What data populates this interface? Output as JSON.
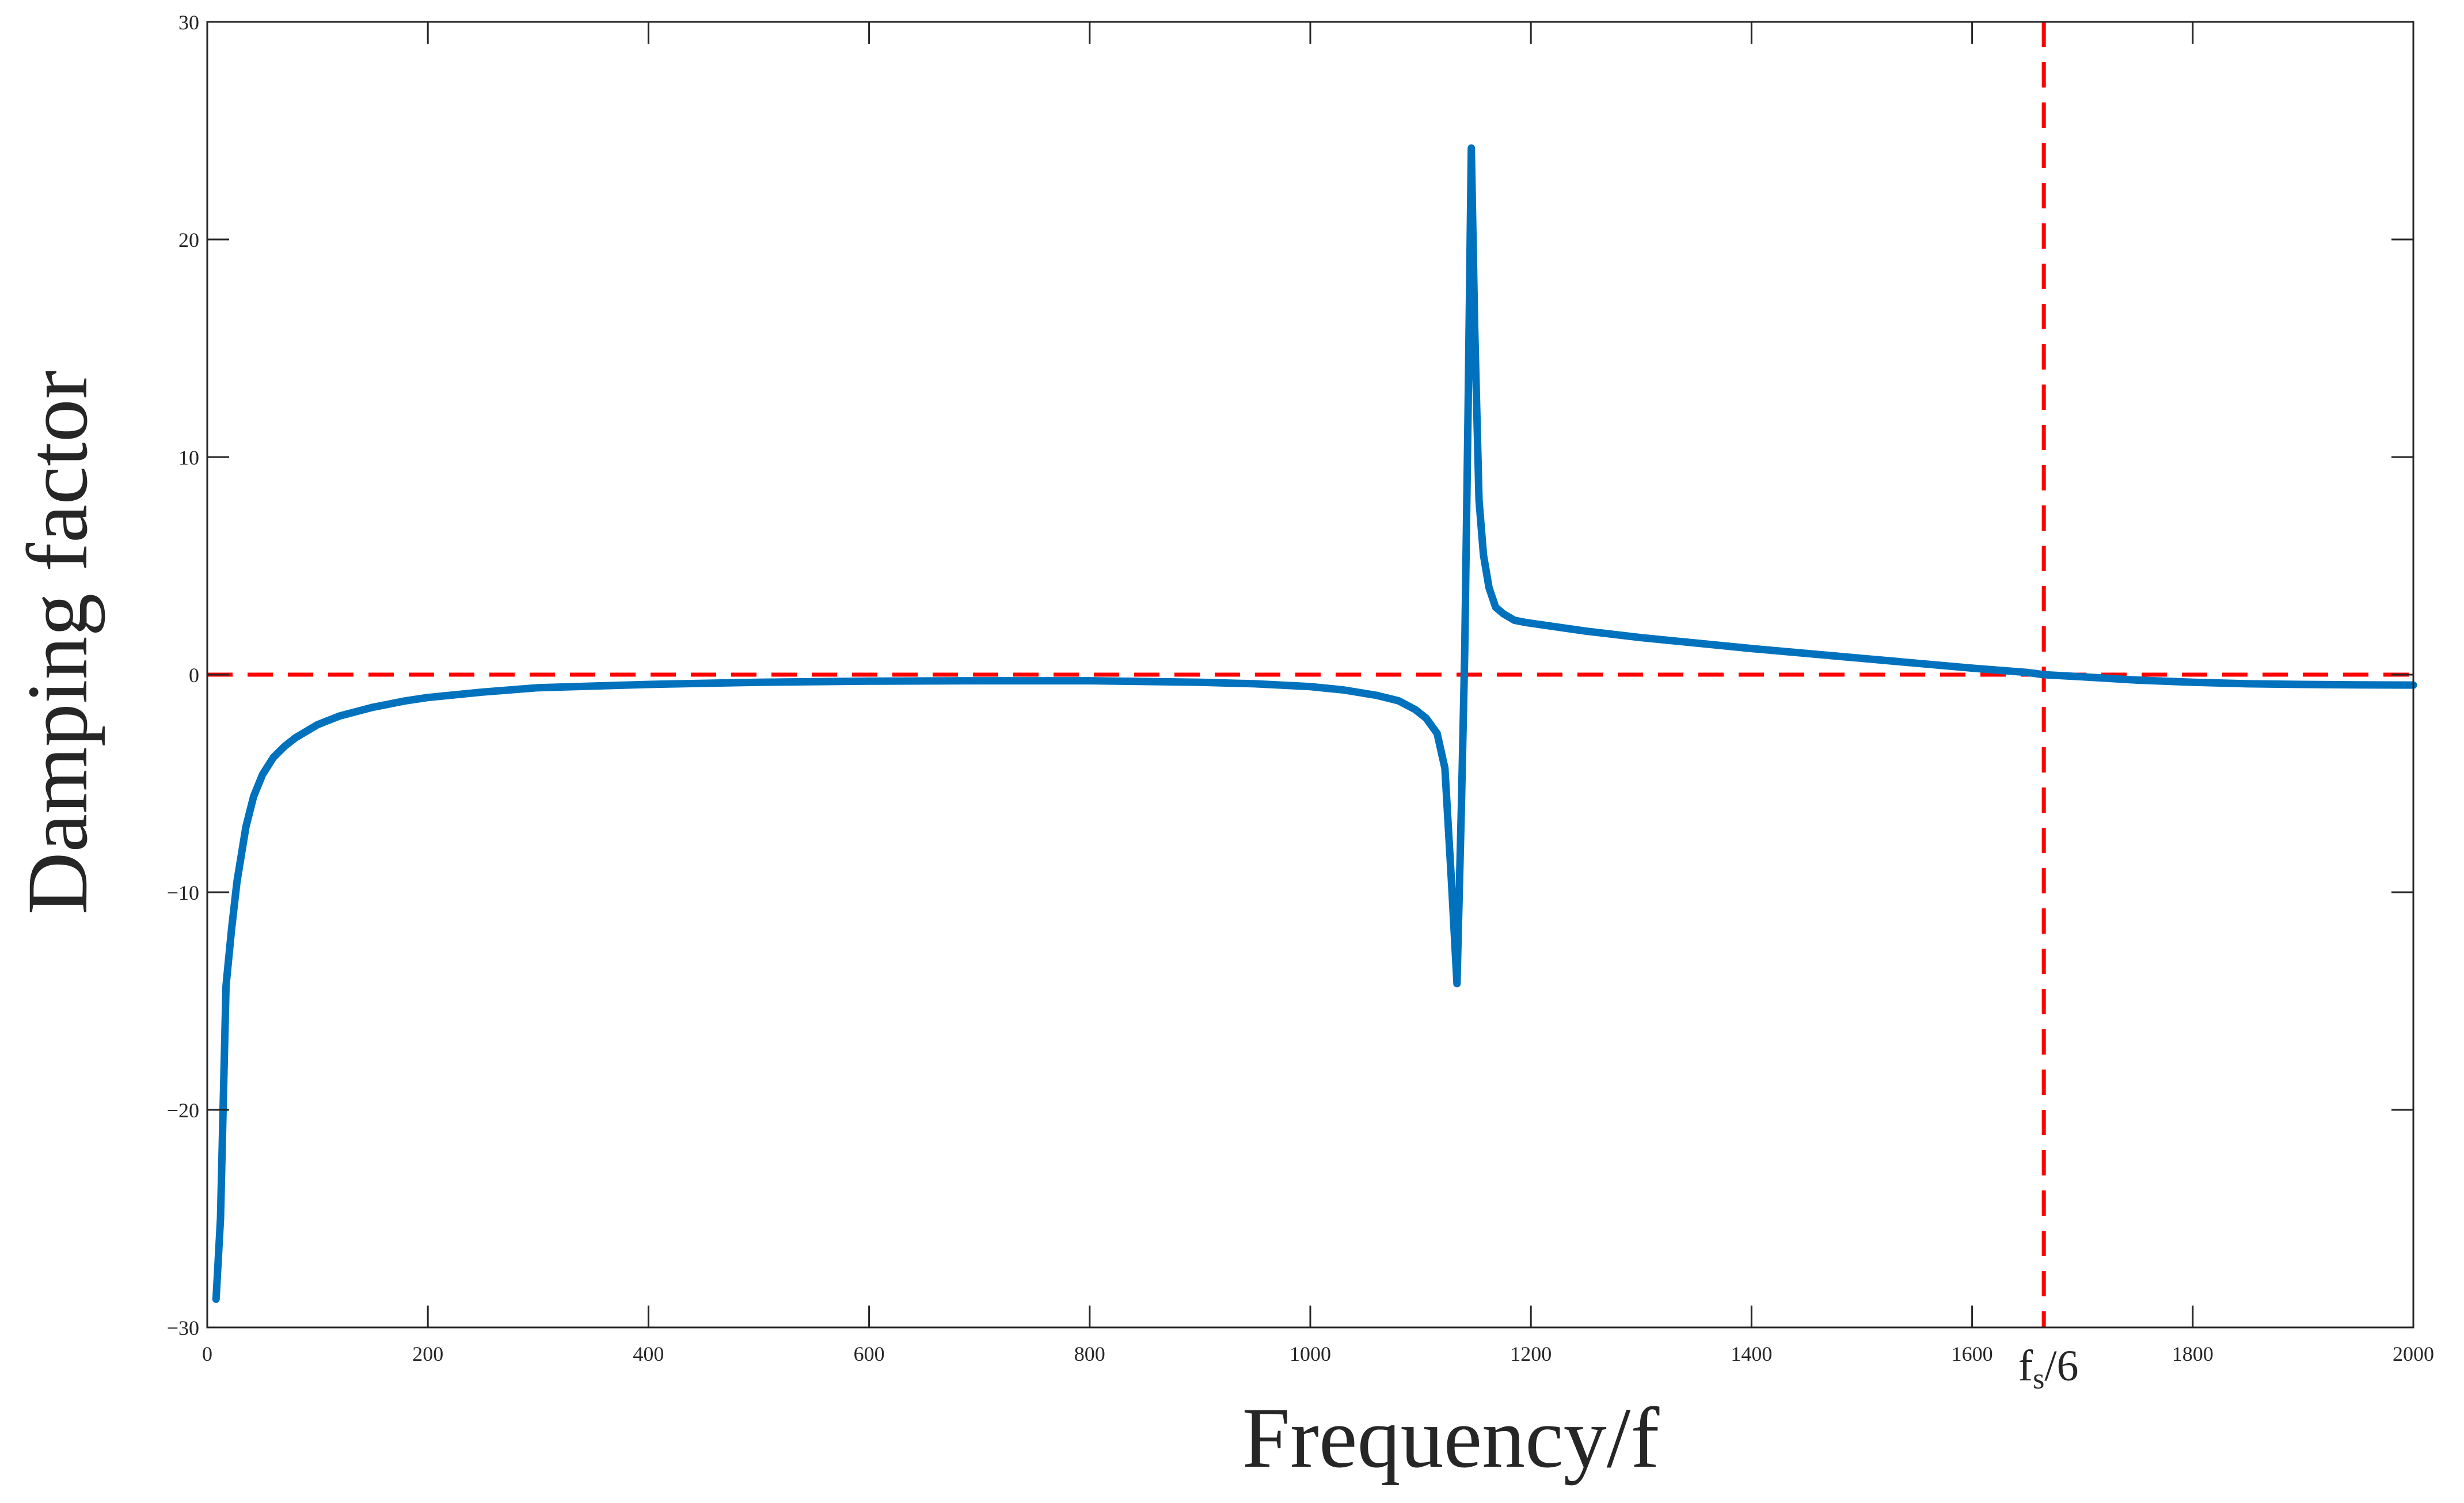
{
  "chart_data": {
    "type": "line",
    "title": "",
    "xlabel": "Frequency/f",
    "ylabel": "Damping factor",
    "xlim": [
      0,
      2000
    ],
    "ylim": [
      -30,
      30
    ],
    "xticks": [
      0,
      200,
      400,
      600,
      800,
      1000,
      1200,
      1400,
      1600,
      1800,
      2000
    ],
    "yticks": [
      -30,
      -20,
      -10,
      0,
      10,
      20,
      30
    ],
    "xtick_labels": [
      "0",
      "200",
      "400",
      "600",
      "800",
      "1000",
      "1200",
      "1400",
      "1600",
      "1800",
      "2000"
    ],
    "ytick_labels": [
      "−30",
      "−20",
      "−10",
      "0",
      "10",
      "20",
      "30"
    ],
    "grid": false,
    "series": [
      {
        "color": "#0072BD",
        "x": [
          8,
          12,
          17,
          22,
          27,
          35,
          42,
          50,
          60,
          70,
          80,
          100,
          120,
          150,
          180,
          200,
          250,
          300,
          400,
          500,
          600,
          700,
          800,
          900,
          950,
          1000,
          1030,
          1060,
          1080,
          1095,
          1105,
          1115,
          1122,
          1128,
          1133,
          1137,
          1140,
          1143,
          1146,
          1149,
          1151,
          1153,
          1157,
          1162,
          1168,
          1175,
          1185,
          1195,
          1250,
          1300,
          1400,
          1500,
          1600,
          1650,
          1665,
          1700,
          1750,
          1800,
          1850,
          1900,
          1950,
          2000
        ],
        "y": [
          -28.7,
          -25,
          -14.3,
          -11.7,
          -9.5,
          -7,
          -5.6,
          -4.6,
          -3.8,
          -3.3,
          -2.9,
          -2.3,
          -1.9,
          -1.5,
          -1.2,
          -1.05,
          -0.8,
          -0.6,
          -0.45,
          -0.35,
          -0.3,
          -0.28,
          -0.28,
          -0.35,
          -0.42,
          -0.55,
          -0.7,
          -0.95,
          -1.2,
          -1.6,
          -2,
          -2.7,
          -4.3,
          -9.5,
          -14.2,
          -6,
          1,
          12,
          24.2,
          16,
          12,
          8,
          5.5,
          4,
          3.1,
          2.8,
          2.5,
          2.4,
          2,
          1.7,
          1.2,
          0.75,
          0.3,
          0.1,
          0,
          -0.1,
          -0.25,
          -0.35,
          -0.42,
          -0.45,
          -0.47,
          -0.48
        ]
      }
    ],
    "reference_lines": [
      {
        "orientation": "horizontal",
        "value": 0,
        "color": "#FF0000",
        "style": "dashed"
      },
      {
        "orientation": "vertical",
        "value": 1665,
        "color": "#FF0000",
        "style": "dashed"
      }
    ],
    "annotations": [
      {
        "base": "f",
        "subscript": "s",
        "rest": "/6",
        "x": 1665
      }
    ]
  }
}
